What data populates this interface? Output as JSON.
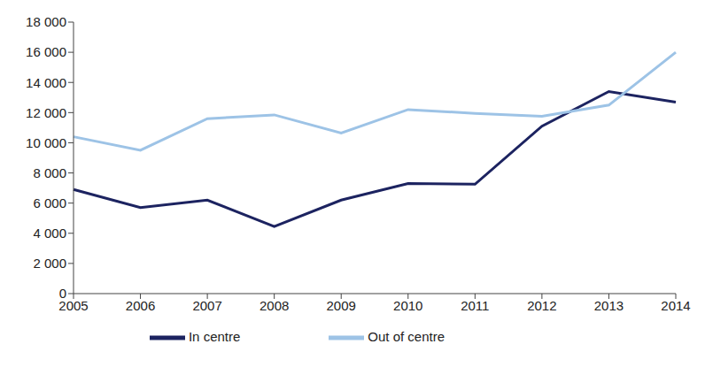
{
  "chart_data": {
    "type": "line",
    "categories": [
      "2005",
      "2006",
      "2007",
      "2008",
      "2009",
      "2010",
      "2011",
      "2012",
      "2013",
      "2014"
    ],
    "series": [
      {
        "name": "In centre",
        "color": "#1c2360",
        "values": [
          6900,
          5700,
          6200,
          4450,
          6200,
          7300,
          7250,
          11100,
          13400,
          12700
        ]
      },
      {
        "name": "Out of centre",
        "color": "#9dc3e6",
        "values": [
          10400,
          9500,
          11600,
          11850,
          10650,
          12200,
          11950,
          11750,
          12500,
          16000
        ]
      }
    ],
    "ylim": [
      0,
      18000
    ],
    "yticks": [
      0,
      {
        "value": 2000,
        "label": "2 000"
      },
      {
        "value": 4000,
        "label": "4 000"
      },
      {
        "value": 6000,
        "label": "6 000"
      },
      {
        "value": 8000,
        "label": "8 000"
      },
      {
        "value": 10000,
        "label": "10 000"
      },
      {
        "value": 12000,
        "label": "12 000"
      },
      {
        "value": 14000,
        "label": "14 000"
      },
      {
        "value": 16000,
        "label": "16 000"
      },
      {
        "value": 18000,
        "label": "18 000"
      }
    ],
    "grid": false,
    "legend": "bottom"
  }
}
